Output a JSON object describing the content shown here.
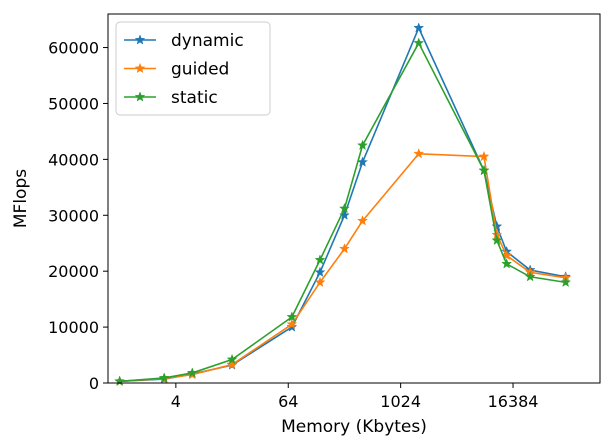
{
  "chart_data": {
    "type": "line",
    "xlabel": "Memory (Kbytes)",
    "ylabel": "MFlops",
    "x_scale": "log2",
    "xlim": [
      0.75,
      140000
    ],
    "ylim": [
      0,
      66000
    ],
    "x_ticks": [
      4,
      64,
      1024,
      16384
    ],
    "x_tick_labels": [
      "4",
      "64",
      "1024",
      "16384"
    ],
    "y_ticks": [
      0,
      10000,
      20000,
      30000,
      40000,
      50000,
      60000
    ],
    "y_tick_labels": [
      "0",
      "10000",
      "20000",
      "30000",
      "40000",
      "50000",
      "60000"
    ],
    "grid": false,
    "legend_position": "top-left",
    "marker": "star",
    "x": [
      1,
      3,
      6,
      16,
      70,
      140,
      256,
      400,
      1600,
      8000,
      11000,
      14000,
      25000,
      60000
    ],
    "series": [
      {
        "name": "dynamic",
        "color": "#1f77b4",
        "values": [
          300,
          700,
          1600,
          3200,
          10000,
          19800,
          30000,
          39500,
          63500,
          38000,
          28000,
          23500,
          20200,
          19000
        ]
      },
      {
        "name": "guided",
        "color": "#ff7f0e",
        "values": [
          300,
          800,
          1500,
          3300,
          10500,
          18000,
          24000,
          29000,
          41000,
          40500,
          26500,
          22800,
          19800,
          18800
        ]
      },
      {
        "name": "static",
        "color": "#2ca02c",
        "values": [
          300,
          900,
          1800,
          4200,
          11800,
          22000,
          31200,
          42500,
          60800,
          38000,
          25500,
          21300,
          19000,
          18000
        ]
      }
    ]
  }
}
